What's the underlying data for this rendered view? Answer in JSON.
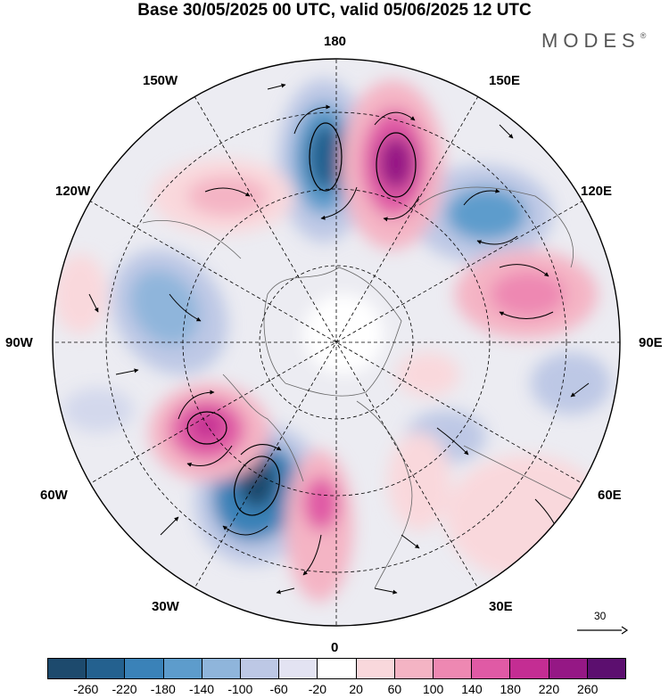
{
  "title": "Base 30/05/2025 00 UTC, valid 05/06/2025 12 UTC",
  "brand": "MODES",
  "brand_mark": "®",
  "lon_labels": {
    "n180": "180",
    "w150": "150W",
    "e150": "150E",
    "w120": "120W",
    "e120": "120E",
    "w90": "90W",
    "e90": "90E",
    "w60": "60W",
    "e60": "60E",
    "w30": "30W",
    "e30": "30E",
    "s0": "0"
  },
  "vector_reference": "30",
  "colorbar": {
    "colors": [
      "#1d4a6d",
      "#24618f",
      "#3a82b8",
      "#5d9ccc",
      "#8fb5db",
      "#bdc8e5",
      "#e3e3f2",
      "#ffffff",
      "#f9d8dc",
      "#f4b4c4",
      "#ee88b2",
      "#e05aa5",
      "#c42d93",
      "#951885",
      "#5c0f6f"
    ],
    "ticks": [
      "-260",
      "-220",
      "-180",
      "-140",
      "-100",
      "-60",
      "-20",
      "20",
      "60",
      "100",
      "140",
      "180",
      "220",
      "260"
    ]
  }
}
